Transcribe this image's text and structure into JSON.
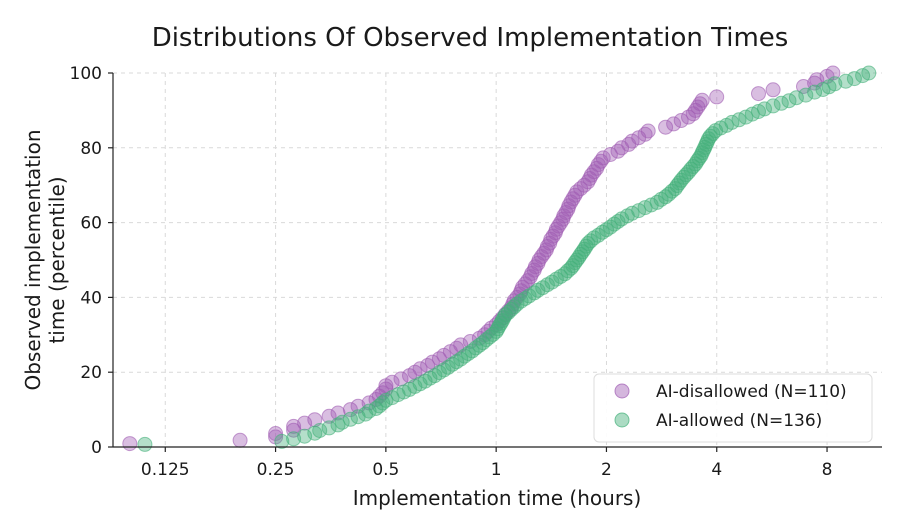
{
  "chart_data": {
    "type": "scatter",
    "title": "Distributions Of Observed Implementation Times",
    "xlabel": "Implementation time (hours)",
    "ylabel_lines": [
      "Observed implementation",
      "time (percentile)"
    ],
    "x_scale": "log2",
    "xlim": [
      0.09,
      11.3
    ],
    "ylim": [
      0,
      100
    ],
    "x_ticks": [
      0.125,
      0.25,
      0.5,
      1,
      2,
      4,
      8
    ],
    "x_tick_labels": [
      "0.125",
      "0.25",
      "0.5",
      "1",
      "2",
      "4",
      "8"
    ],
    "y_ticks": [
      0,
      20,
      40,
      60,
      80,
      100
    ],
    "y_tick_labels": [
      "0",
      "20",
      "40",
      "60",
      "80",
      "100"
    ],
    "grid": true,
    "legend_position": "bottom-right",
    "colors": {
      "purple": "#a05db3",
      "green": "#44b07a"
    },
    "series": [
      {
        "name": "AI-disallowed (N=110)",
        "color": "#a05db3",
        "points": [
          [
            0.1,
            0.9
          ],
          [
            0.2,
            1.8
          ],
          [
            0.25,
            2.7
          ],
          [
            0.25,
            3.6
          ],
          [
            0.28,
            4.5
          ],
          [
            0.28,
            5.5
          ],
          [
            0.3,
            6.4
          ],
          [
            0.32,
            7.3
          ],
          [
            0.35,
            8.2
          ],
          [
            0.37,
            9.1
          ],
          [
            0.4,
            10.0
          ],
          [
            0.42,
            10.9
          ],
          [
            0.45,
            11.8
          ],
          [
            0.47,
            12.7
          ],
          [
            0.48,
            13.6
          ],
          [
            0.49,
            14.5
          ],
          [
            0.5,
            15.5
          ],
          [
            0.5,
            16.4
          ],
          [
            0.52,
            17.3
          ],
          [
            0.55,
            18.2
          ],
          [
            0.58,
            19.1
          ],
          [
            0.6,
            20.0
          ],
          [
            0.62,
            20.9
          ],
          [
            0.65,
            21.8
          ],
          [
            0.67,
            22.7
          ],
          [
            0.7,
            23.6
          ],
          [
            0.72,
            24.5
          ],
          [
            0.75,
            25.5
          ],
          [
            0.78,
            26.4
          ],
          [
            0.8,
            27.3
          ],
          [
            0.85,
            28.2
          ],
          [
            0.9,
            29.1
          ],
          [
            0.93,
            30.0
          ],
          [
            0.95,
            30.9
          ],
          [
            0.97,
            31.8
          ],
          [
            1.0,
            32.7
          ],
          [
            1.02,
            33.6
          ],
          [
            1.04,
            34.5
          ],
          [
            1.06,
            35.5
          ],
          [
            1.08,
            36.4
          ],
          [
            1.1,
            37.3
          ],
          [
            1.11,
            38.2
          ],
          [
            1.12,
            39.1
          ],
          [
            1.14,
            40.0
          ],
          [
            1.16,
            40.9
          ],
          [
            1.17,
            41.8
          ],
          [
            1.18,
            42.7
          ],
          [
            1.2,
            43.6
          ],
          [
            1.22,
            44.5
          ],
          [
            1.24,
            45.5
          ],
          [
            1.25,
            46.4
          ],
          [
            1.27,
            47.3
          ],
          [
            1.28,
            48.2
          ],
          [
            1.3,
            49.1
          ],
          [
            1.31,
            50.0
          ],
          [
            1.33,
            50.9
          ],
          [
            1.35,
            51.8
          ],
          [
            1.37,
            52.7
          ],
          [
            1.38,
            53.6
          ],
          [
            1.4,
            54.5
          ],
          [
            1.41,
            55.5
          ],
          [
            1.43,
            56.4
          ],
          [
            1.45,
            57.3
          ],
          [
            1.46,
            58.2
          ],
          [
            1.48,
            59.1
          ],
          [
            1.5,
            60.0
          ],
          [
            1.52,
            60.9
          ],
          [
            1.53,
            61.8
          ],
          [
            1.55,
            62.7
          ],
          [
            1.57,
            63.6
          ],
          [
            1.58,
            64.5
          ],
          [
            1.6,
            65.5
          ],
          [
            1.62,
            66.4
          ],
          [
            1.64,
            67.3
          ],
          [
            1.66,
            68.2
          ],
          [
            1.7,
            69.1
          ],
          [
            1.74,
            70.0
          ],
          [
            1.78,
            70.9
          ],
          [
            1.8,
            71.8
          ],
          [
            1.82,
            72.7
          ],
          [
            1.85,
            73.6
          ],
          [
            1.88,
            74.5
          ],
          [
            1.9,
            75.5
          ],
          [
            1.93,
            76.4
          ],
          [
            1.96,
            77.3
          ],
          [
            2.05,
            78.2
          ],
          [
            2.15,
            79.1
          ],
          [
            2.2,
            80.0
          ],
          [
            2.3,
            80.9
          ],
          [
            2.35,
            81.8
          ],
          [
            2.45,
            82.7
          ],
          [
            2.55,
            83.6
          ],
          [
            2.6,
            84.5
          ],
          [
            2.9,
            85.5
          ],
          [
            3.05,
            86.4
          ],
          [
            3.2,
            87.3
          ],
          [
            3.35,
            88.2
          ],
          [
            3.45,
            89.1
          ],
          [
            3.5,
            90.0
          ],
          [
            3.55,
            90.9
          ],
          [
            3.6,
            91.8
          ],
          [
            3.65,
            92.7
          ],
          [
            4.0,
            93.6
          ],
          [
            5.2,
            94.5
          ],
          [
            5.7,
            95.5
          ],
          [
            6.9,
            96.4
          ],
          [
            7.4,
            97.3
          ],
          [
            7.5,
            98.2
          ],
          [
            8.0,
            99.1
          ],
          [
            8.3,
            100.0
          ]
        ]
      },
      {
        "name": "AI-allowed (N=136)",
        "color": "#44b07a",
        "points": [
          [
            0.11,
            0.7
          ],
          [
            0.26,
            1.5
          ],
          [
            0.28,
            2.2
          ],
          [
            0.3,
            2.9
          ],
          [
            0.32,
            3.7
          ],
          [
            0.33,
            4.4
          ],
          [
            0.35,
            5.1
          ],
          [
            0.37,
            5.9
          ],
          [
            0.38,
            6.6
          ],
          [
            0.4,
            7.4
          ],
          [
            0.42,
            8.1
          ],
          [
            0.44,
            8.8
          ],
          [
            0.45,
            9.6
          ],
          [
            0.47,
            10.3
          ],
          [
            0.48,
            11.0
          ],
          [
            0.49,
            11.8
          ],
          [
            0.5,
            12.5
          ],
          [
            0.52,
            13.2
          ],
          [
            0.54,
            14.0
          ],
          [
            0.56,
            14.7
          ],
          [
            0.58,
            15.4
          ],
          [
            0.6,
            16.2
          ],
          [
            0.62,
            16.9
          ],
          [
            0.64,
            17.6
          ],
          [
            0.66,
            18.4
          ],
          [
            0.68,
            19.1
          ],
          [
            0.7,
            19.9
          ],
          [
            0.72,
            20.6
          ],
          [
            0.74,
            21.3
          ],
          [
            0.76,
            22.1
          ],
          [
            0.78,
            22.8
          ],
          [
            0.8,
            23.5
          ],
          [
            0.82,
            24.3
          ],
          [
            0.84,
            25.0
          ],
          [
            0.86,
            25.7
          ],
          [
            0.88,
            26.5
          ],
          [
            0.9,
            27.2
          ],
          [
            0.92,
            27.9
          ],
          [
            0.94,
            28.7
          ],
          [
            0.96,
            29.4
          ],
          [
            0.98,
            30.1
          ],
          [
            1.0,
            30.9
          ],
          [
            1.01,
            31.6
          ],
          [
            1.02,
            32.4
          ],
          [
            1.03,
            33.1
          ],
          [
            1.04,
            33.8
          ],
          [
            1.05,
            34.6
          ],
          [
            1.06,
            35.3
          ],
          [
            1.08,
            36.0
          ],
          [
            1.1,
            36.8
          ],
          [
            1.12,
            37.5
          ],
          [
            1.14,
            38.2
          ],
          [
            1.17,
            39.0
          ],
          [
            1.2,
            39.7
          ],
          [
            1.23,
            40.4
          ],
          [
            1.27,
            41.2
          ],
          [
            1.3,
            41.9
          ],
          [
            1.34,
            42.6
          ],
          [
            1.38,
            43.4
          ],
          [
            1.42,
            44.1
          ],
          [
            1.46,
            44.9
          ],
          [
            1.5,
            45.6
          ],
          [
            1.54,
            46.3
          ],
          [
            1.57,
            47.1
          ],
          [
            1.6,
            47.8
          ],
          [
            1.62,
            48.5
          ],
          [
            1.64,
            49.3
          ],
          [
            1.66,
            50.0
          ],
          [
            1.68,
            50.7
          ],
          [
            1.7,
            51.5
          ],
          [
            1.72,
            52.2
          ],
          [
            1.74,
            52.9
          ],
          [
            1.76,
            53.7
          ],
          [
            1.78,
            54.4
          ],
          [
            1.81,
            55.1
          ],
          [
            1.85,
            55.9
          ],
          [
            1.9,
            56.6
          ],
          [
            1.95,
            57.4
          ],
          [
            2.0,
            58.1
          ],
          [
            2.05,
            58.8
          ],
          [
            2.1,
            59.6
          ],
          [
            2.15,
            60.3
          ],
          [
            2.2,
            61.0
          ],
          [
            2.28,
            61.8
          ],
          [
            2.35,
            62.5
          ],
          [
            2.45,
            63.2
          ],
          [
            2.55,
            64.0
          ],
          [
            2.65,
            64.7
          ],
          [
            2.75,
            65.4
          ],
          [
            2.82,
            66.2
          ],
          [
            2.9,
            66.9
          ],
          [
            2.96,
            67.6
          ],
          [
            3.02,
            68.4
          ],
          [
            3.08,
            69.1
          ],
          [
            3.12,
            69.9
          ],
          [
            3.16,
            70.6
          ],
          [
            3.2,
            71.3
          ],
          [
            3.25,
            72.1
          ],
          [
            3.3,
            72.8
          ],
          [
            3.35,
            73.5
          ],
          [
            3.4,
            74.3
          ],
          [
            3.45,
            75.0
          ],
          [
            3.5,
            75.7
          ],
          [
            3.54,
            76.5
          ],
          [
            3.58,
            77.2
          ],
          [
            3.62,
            77.9
          ],
          [
            3.65,
            78.7
          ],
          [
            3.68,
            79.4
          ],
          [
            3.71,
            80.1
          ],
          [
            3.74,
            80.9
          ],
          [
            3.77,
            81.6
          ],
          [
            3.8,
            82.4
          ],
          [
            3.84,
            83.1
          ],
          [
            3.9,
            83.8
          ],
          [
            3.97,
            84.6
          ],
          [
            4.1,
            85.3
          ],
          [
            4.25,
            86.0
          ],
          [
            4.4,
            86.8
          ],
          [
            4.6,
            87.5
          ],
          [
            4.8,
            88.2
          ],
          [
            5.0,
            89.0
          ],
          [
            5.2,
            89.7
          ],
          [
            5.4,
            90.4
          ],
          [
            5.7,
            91.2
          ],
          [
            6.0,
            91.9
          ],
          [
            6.3,
            92.6
          ],
          [
            6.6,
            93.4
          ],
          [
            7.0,
            94.1
          ],
          [
            7.4,
            94.9
          ],
          [
            7.8,
            95.6
          ],
          [
            8.1,
            96.3
          ],
          [
            8.4,
            97.1
          ],
          [
            9.0,
            97.8
          ],
          [
            9.5,
            98.5
          ],
          [
            10.0,
            99.3
          ],
          [
            10.4,
            100.0
          ]
        ]
      }
    ]
  }
}
